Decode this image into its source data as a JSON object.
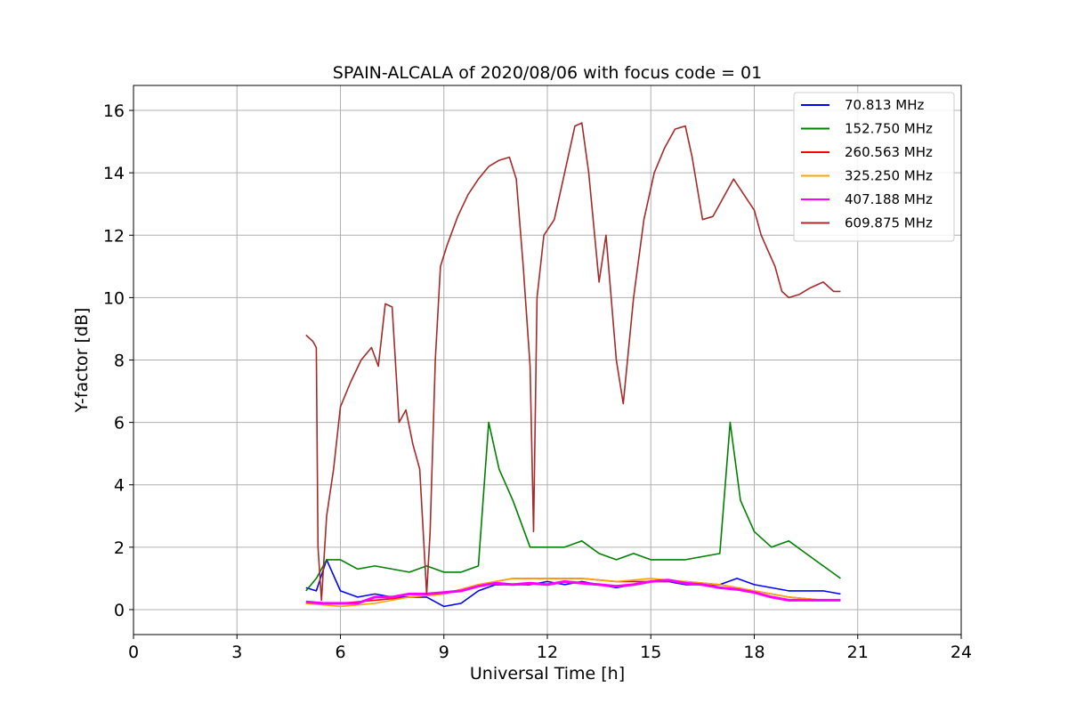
{
  "chart_data": {
    "type": "line",
    "title": "SPAIN-ALCALA of 2020/08/06 with focus code = 01",
    "xlabel": "Universal Time [h]",
    "ylabel": "Y-factor [dB]",
    "xlim": [
      0,
      24
    ],
    "ylim": [
      -0.8,
      16.8
    ],
    "xticks": [
      0,
      3,
      6,
      9,
      12,
      15,
      18,
      21,
      24
    ],
    "yticks": [
      0,
      2,
      4,
      6,
      8,
      10,
      12,
      14,
      16
    ],
    "grid": true,
    "legend_position": "top-right",
    "series": [
      {
        "name": " 70.813 MHz",
        "color": "#0000ff",
        "x": [
          5.0,
          5.3,
          5.6,
          6.0,
          6.5,
          7.0,
          7.5,
          8.0,
          8.5,
          9.0,
          9.5,
          10.0,
          10.5,
          11.0,
          11.5,
          12.0,
          12.5,
          13.0,
          13.5,
          14.0,
          14.5,
          15.0,
          15.5,
          16.0,
          16.5,
          17.0,
          17.5,
          18.0,
          18.5,
          19.0,
          19.5,
          20.0,
          20.5
        ],
        "y": [
          0.7,
          0.6,
          1.6,
          0.6,
          0.4,
          0.5,
          0.4,
          0.4,
          0.4,
          0.1,
          0.2,
          0.6,
          0.8,
          0.8,
          0.8,
          0.9,
          0.8,
          0.9,
          0.8,
          0.7,
          0.8,
          0.9,
          0.9,
          0.8,
          0.8,
          0.8,
          1.0,
          0.8,
          0.7,
          0.6,
          0.6,
          0.6,
          0.5
        ]
      },
      {
        "name": "152.750 MHz",
        "color": "#008000",
        "x": [
          5.0,
          5.3,
          5.6,
          6.0,
          6.5,
          7.0,
          7.5,
          8.0,
          8.5,
          9.0,
          9.5,
          10.0,
          10.3,
          10.6,
          11.0,
          11.5,
          12.0,
          12.5,
          13.0,
          13.5,
          14.0,
          14.5,
          15.0,
          15.5,
          16.0,
          16.5,
          17.0,
          17.3,
          17.6,
          18.0,
          18.5,
          19.0,
          19.5,
          20.0,
          20.5
        ],
        "y": [
          0.6,
          1.0,
          1.6,
          1.6,
          1.3,
          1.4,
          1.3,
          1.2,
          1.4,
          1.2,
          1.2,
          1.4,
          6.0,
          4.5,
          3.5,
          2.0,
          2.0,
          2.0,
          2.2,
          1.8,
          1.6,
          1.8,
          1.6,
          1.6,
          1.6,
          1.7,
          1.8,
          6.0,
          3.5,
          2.5,
          2.0,
          2.2,
          1.8,
          1.4,
          1.0
        ]
      },
      {
        "name": "260.563 MHz",
        "color": "#ff0000",
        "x": [
          5.0,
          6.0,
          7.0,
          8.0,
          9.0,
          10.0,
          11.0,
          12.0,
          13.0,
          14.0,
          15.0,
          16.0,
          17.0,
          18.0,
          19.0,
          20.0,
          20.5
        ],
        "y": [
          0.2,
          0.2,
          0.3,
          0.4,
          0.5,
          0.8,
          1.0,
          1.0,
          1.0,
          0.9,
          0.9,
          0.9,
          0.8,
          0.6,
          0.4,
          0.3,
          0.3
        ]
      },
      {
        "name": "325.250 MHz",
        "color": "#ffa500",
        "x": [
          5.0,
          6.0,
          7.0,
          8.0,
          9.0,
          10.0,
          11.0,
          12.0,
          13.0,
          14.0,
          15.0,
          16.0,
          17.0,
          18.0,
          19.0,
          20.0,
          20.5
        ],
        "y": [
          0.2,
          0.1,
          0.2,
          0.4,
          0.5,
          0.8,
          1.0,
          1.0,
          1.0,
          0.9,
          1.0,
          0.9,
          0.8,
          0.6,
          0.4,
          0.3,
          0.3
        ]
      },
      {
        "name": "407.188 MHz",
        "color": "#ff00ff",
        "x": [
          5.0,
          5.5,
          6.0,
          6.5,
          7.0,
          7.5,
          8.0,
          8.5,
          9.0,
          9.5,
          10.0,
          10.5,
          11.0,
          11.5,
          12.0,
          12.5,
          13.0,
          13.5,
          14.0,
          14.5,
          15.0,
          15.5,
          16.0,
          16.5,
          17.0,
          17.5,
          18.0,
          18.5,
          19.0,
          19.5,
          20.0,
          20.5
        ],
        "y": [
          0.25,
          0.2,
          0.2,
          0.2,
          0.4,
          0.4,
          0.5,
          0.5,
          0.55,
          0.6,
          0.75,
          0.85,
          0.8,
          0.85,
          0.8,
          0.9,
          0.85,
          0.8,
          0.75,
          0.8,
          0.9,
          0.95,
          0.85,
          0.8,
          0.7,
          0.65,
          0.55,
          0.4,
          0.3,
          0.3,
          0.3,
          0.3
        ]
      },
      {
        "name": "609.875 MHz",
        "color": "#a52a2a",
        "x": [
          5.0,
          5.2,
          5.3,
          5.35,
          5.45,
          5.6,
          5.8,
          6.0,
          6.3,
          6.6,
          6.9,
          7.1,
          7.3,
          7.5,
          7.7,
          7.9,
          8.1,
          8.3,
          8.5,
          8.6,
          8.75,
          8.9,
          9.1,
          9.4,
          9.7,
          10.0,
          10.3,
          10.6,
          10.9,
          11.1,
          11.3,
          11.5,
          11.6,
          11.7,
          11.9,
          12.2,
          12.5,
          12.8,
          13.0,
          13.2,
          13.5,
          13.7,
          14.0,
          14.2,
          14.5,
          14.8,
          15.1,
          15.4,
          15.7,
          16.0,
          16.2,
          16.5,
          16.8,
          17.1,
          17.4,
          17.7,
          18.0,
          18.2,
          18.4,
          18.6,
          18.8,
          19.0,
          19.3,
          19.6,
          20.0,
          20.3,
          20.5
        ],
        "y": [
          8.8,
          8.6,
          8.4,
          2.0,
          0.3,
          3.0,
          4.5,
          6.5,
          7.3,
          8.0,
          8.4,
          7.8,
          9.8,
          9.7,
          6.0,
          6.4,
          5.3,
          4.5,
          0.5,
          2.5,
          8.0,
          11.0,
          11.7,
          12.6,
          13.3,
          13.8,
          14.2,
          14.4,
          14.5,
          13.8,
          11.0,
          7.8,
          2.5,
          10.0,
          12.0,
          12.5,
          14.0,
          15.5,
          15.6,
          14.0,
          10.5,
          12.0,
          8.0,
          6.6,
          10.0,
          12.5,
          14.0,
          14.8,
          15.4,
          15.5,
          14.5,
          12.5,
          12.6,
          13.2,
          13.8,
          13.3,
          12.8,
          12.0,
          11.5,
          11.0,
          10.2,
          10.0,
          10.1,
          10.3,
          10.5,
          10.2,
          10.2
        ]
      }
    ]
  }
}
